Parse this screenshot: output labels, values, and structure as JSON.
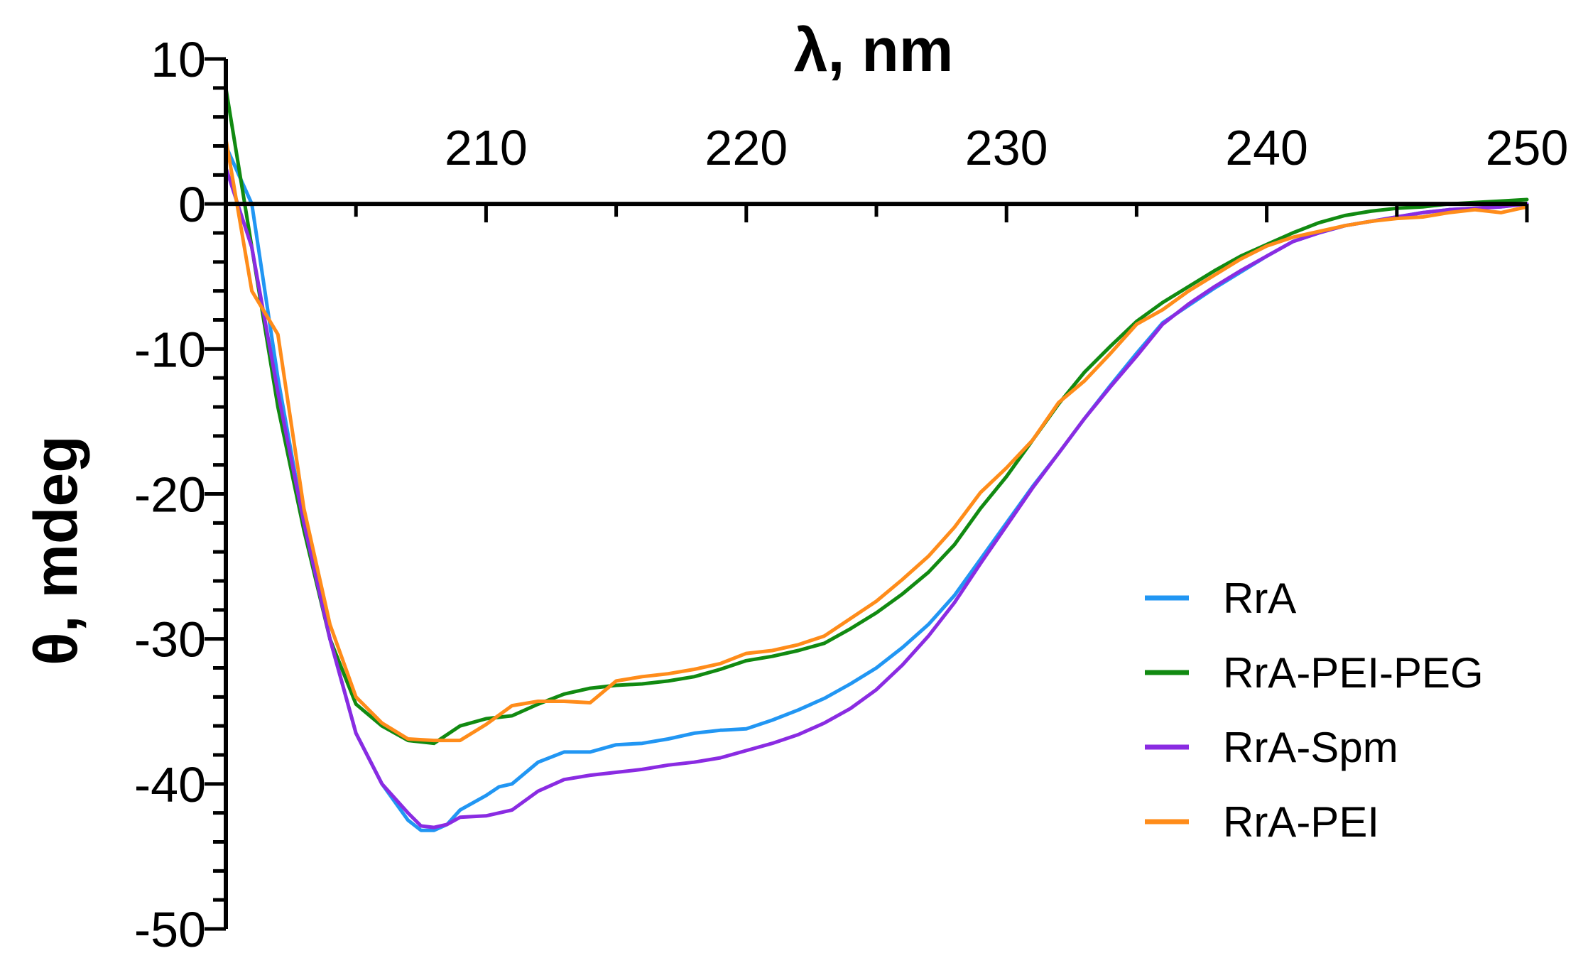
{
  "chart_data": {
    "type": "line",
    "title": "",
    "xlabel": "λ, nm",
    "ylabel": "θ, mdeg",
    "xlim": [
      200,
      250
    ],
    "ylim": [
      -50,
      10
    ],
    "xticks": [
      210,
      220,
      230,
      240,
      250
    ],
    "xtick_labels": [
      "210",
      "220",
      "230",
      "240",
      "250"
    ],
    "yticks": [
      10,
      0,
      -10,
      -20,
      -30,
      -40,
      -50
    ],
    "ytick_labels": [
      "10",
      "0",
      "-10",
      "-20",
      "-30",
      "-40",
      "-50"
    ],
    "grid": false,
    "legend_position": "bottom-right",
    "series": [
      {
        "name": "RrA",
        "color": "#2196F3",
        "x": [
          200,
          201,
          202,
          203,
          204,
          205,
          206,
          207,
          207.5,
          208,
          208.5,
          209,
          210,
          210.5,
          211,
          212,
          213,
          214,
          215,
          216,
          217,
          218,
          219,
          220,
          221,
          222,
          223,
          224,
          225,
          226,
          227,
          228,
          229,
          230,
          231,
          232,
          233,
          234,
          235,
          236,
          237,
          238,
          239,
          240,
          241,
          242,
          243,
          244,
          245,
          246,
          247,
          248,
          249,
          250
        ],
        "y": [
          4,
          0,
          -12,
          -22,
          -30,
          -36.5,
          -40,
          -42.5,
          -43.2,
          -43.2,
          -42.8,
          -41.8,
          -40.8,
          -40.2,
          -40,
          -38.5,
          -37.8,
          -37.8,
          -37.3,
          -37.2,
          -36.9,
          -36.5,
          -36.3,
          -36.2,
          -35.6,
          -34.9,
          -34.1,
          -33.1,
          -32,
          -30.6,
          -29,
          -27,
          -24.5,
          -22,
          -19.5,
          -17.2,
          -14.8,
          -12.5,
          -10.3,
          -8.2,
          -7,
          -5.8,
          -4.7,
          -3.6,
          -2.6,
          -2,
          -1.5,
          -1.2,
          -0.9,
          -0.6,
          -0.4,
          -0.3,
          -0.2,
          0
        ]
      },
      {
        "name": "RrA-PEI-PEG",
        "color": "#118A11",
        "x": [
          200,
          201,
          202,
          203,
          204,
          205,
          206,
          207,
          208,
          209,
          210,
          211,
          212,
          213,
          214,
          215,
          216,
          217,
          218,
          219,
          220,
          221,
          222,
          223,
          224,
          225,
          226,
          227,
          228,
          229,
          230,
          231,
          232,
          233,
          234,
          235,
          236,
          237,
          238,
          239,
          240,
          241,
          242,
          243,
          244,
          245,
          246,
          247,
          248,
          249,
          250
        ],
        "y": [
          8,
          -3,
          -14,
          -22.5,
          -30,
          -34.5,
          -36,
          -37,
          -37.2,
          -36,
          -35.5,
          -35.3,
          -34.5,
          -33.8,
          -33.4,
          -33.2,
          -33.1,
          -32.9,
          -32.6,
          -32.1,
          -31.5,
          -31.2,
          -30.8,
          -30.3,
          -29.3,
          -28.2,
          -26.9,
          -25.4,
          -23.5,
          -21,
          -18.8,
          -16.3,
          -13.8,
          -11.6,
          -9.8,
          -8.1,
          -6.8,
          -5.7,
          -4.6,
          -3.6,
          -2.8,
          -2,
          -1.3,
          -0.8,
          -0.5,
          -0.3,
          -0.2,
          0,
          0.1,
          0.2,
          0.3
        ]
      },
      {
        "name": "RrA-Spm",
        "color": "#8A2BE2",
        "x": [
          200,
          201,
          202,
          203,
          204,
          205,
          206,
          207,
          207.5,
          208,
          208.5,
          209,
          210,
          211,
          212,
          213,
          214,
          215,
          216,
          217,
          218,
          219,
          220,
          221,
          222,
          223,
          224,
          225,
          226,
          227,
          228,
          229,
          230,
          231,
          232,
          233,
          234,
          235,
          236,
          237,
          238,
          239,
          240,
          241,
          242,
          243,
          244,
          245,
          246,
          247,
          248,
          249,
          250
        ],
        "y": [
          2.5,
          -3,
          -13,
          -22,
          -30,
          -36.5,
          -40,
          -42,
          -42.9,
          -43,
          -42.8,
          -42.3,
          -42.2,
          -41.8,
          -40.5,
          -39.7,
          -39.4,
          -39.2,
          -39,
          -38.7,
          -38.5,
          -38.2,
          -37.7,
          -37.2,
          -36.6,
          -35.8,
          -34.8,
          -33.5,
          -31.8,
          -29.8,
          -27.5,
          -24.8,
          -22.2,
          -19.6,
          -17.2,
          -14.8,
          -12.6,
          -10.5,
          -8.3,
          -6.9,
          -5.7,
          -4.6,
          -3.6,
          -2.6,
          -2,
          -1.5,
          -1.2,
          -0.9,
          -0.6,
          -0.4,
          -0.3,
          -0.2,
          0
        ]
      },
      {
        "name": "RrA-PEI",
        "color": "#FF8C1A",
        "x": [
          200,
          201,
          202,
          203,
          204,
          205,
          206,
          207,
          208,
          209,
          210,
          211,
          212,
          213,
          214,
          215,
          216,
          217,
          218,
          219,
          220,
          221,
          222,
          223,
          224,
          225,
          226,
          227,
          228,
          229,
          230,
          231,
          232,
          233,
          234,
          235,
          236,
          237,
          238,
          239,
          240,
          241,
          242,
          243,
          244,
          245,
          246,
          247,
          248,
          249,
          250
        ],
        "y": [
          4.5,
          -6,
          -9,
          -21,
          -29,
          -34,
          -35.8,
          -36.9,
          -37,
          -37,
          -35.9,
          -34.6,
          -34.3,
          -34.3,
          -34.4,
          -32.9,
          -32.6,
          -32.4,
          -32.1,
          -31.7,
          -31,
          -30.8,
          -30.4,
          -29.8,
          -28.6,
          -27.4,
          -25.9,
          -24.3,
          -22.3,
          -19.9,
          -18.2,
          -16.3,
          -13.7,
          -12.2,
          -10.3,
          -8.3,
          -7.3,
          -6,
          -4.9,
          -3.8,
          -2.9,
          -2.3,
          -1.9,
          -1.5,
          -1.2,
          -1,
          -0.9,
          -0.6,
          -0.4,
          -0.6,
          -0.2
        ]
      }
    ]
  }
}
